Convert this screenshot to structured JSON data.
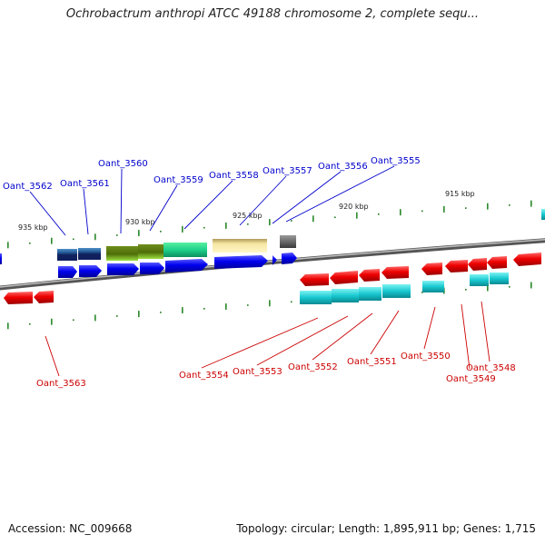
{
  "title": "Ochrobactrum anthropi ATCC 49188 chromosome 2, complete sequ...",
  "footer": {
    "accession": "Accession: NC_009668",
    "summary": "Topology: circular; Length: 1,895,911 bp; Genes: 1,715"
  },
  "scale_labels": [
    "935 kbp",
    "930 kbp",
    "925 kbp",
    "920 kbp",
    "915 kbp"
  ],
  "colors": {
    "backbone": "#8a8a8a",
    "tick": "#2e8b2e",
    "label_forward": "#0000cc",
    "label_reverse": "#cc0000",
    "forward_gene": "#0000ee",
    "reverse_gene": "#ee0000"
  },
  "forward_labels": [
    "Oant_3562",
    "Oant_3561",
    "Oant_3560",
    "Oant_3559",
    "Oant_3558",
    "Oant_3557",
    "Oant_3556",
    "Oant_3555"
  ],
  "reverse_labels": [
    "Oant_3563",
    "Oant_3554",
    "Oant_3553",
    "Oant_3552",
    "Oant_3551",
    "Oant_3550",
    "Oant_3549",
    "Oant_3548"
  ]
}
